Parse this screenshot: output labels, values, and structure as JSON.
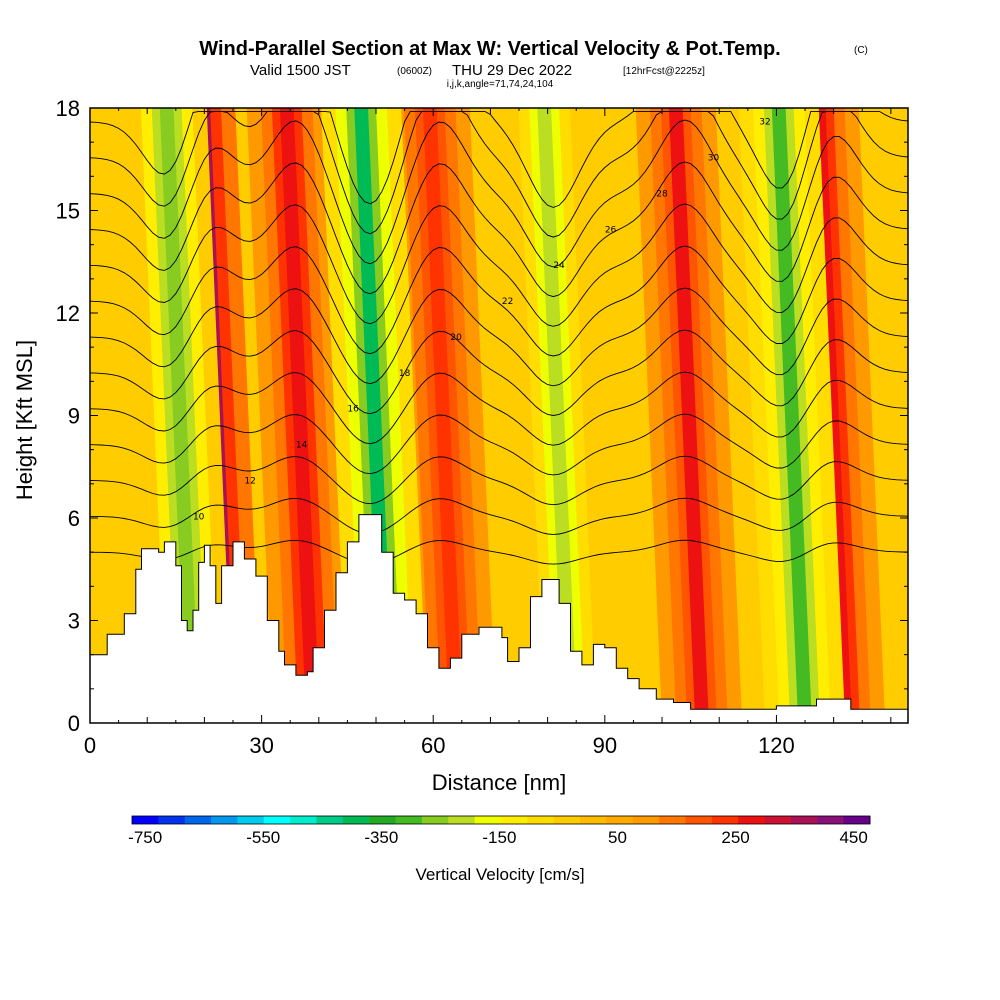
{
  "header": {
    "title": "Wind-Parallel Section at Max W: Vertical Velocity & Pot.Temp.",
    "title_suffix": "(C)",
    "valid_prefix": "Valid 1500 JST",
    "valid_utc": "(0600Z)",
    "valid_date": "THU 29 Dec 2022",
    "forecast": "[12hrFcst@2225z]",
    "indices": "i,j,k,angle=71,74,24,104"
  },
  "chart_data": {
    "type": "heatmap",
    "xlabel": "Distance [nm]",
    "ylabel": "Height [Kft MSL]",
    "xlim": [
      0,
      143
    ],
    "ylim": [
      0,
      18
    ],
    "x_ticks": [
      0,
      30,
      60,
      90,
      120
    ],
    "y_ticks": [
      0,
      3,
      6,
      9,
      12,
      15,
      18
    ],
    "colorbar": {
      "label": "Vertical Velocity [cm/s]",
      "ticks": [
        -750,
        -550,
        -350,
        -150,
        50,
        250,
        450
      ],
      "min": -750,
      "max": 500,
      "colors": [
        "#0000ff",
        "#0033ee",
        "#0066ee",
        "#0099ee",
        "#00ccee",
        "#00ffff",
        "#00eecc",
        "#00cc88",
        "#00bb55",
        "#22aa22",
        "#44bb22",
        "#88cc22",
        "#bbdd22",
        "#eeff00",
        "#ffee00",
        "#ffdd00",
        "#ffcc00",
        "#ffbb00",
        "#ffaa00",
        "#ff9900",
        "#ff7700",
        "#ff5500",
        "#ff3300",
        "#ee1111",
        "#cc1133",
        "#aa1155",
        "#881177",
        "#660088"
      ]
    },
    "updraft_bands": [
      {
        "name": "strong updraft",
        "x_center": 20,
        "w": 500
      },
      {
        "name": "updraft",
        "x_center": 36,
        "w": 300
      },
      {
        "name": "updraft",
        "x_center": 61,
        "w": 260
      },
      {
        "name": "updraft",
        "x_center": 104,
        "w": 280
      },
      {
        "name": "updraft",
        "x_center": 129,
        "w": 300
      }
    ],
    "downdraft_bands": [
      {
        "name": "downdraft",
        "x_center": 15,
        "w": -250
      },
      {
        "name": "downdraft",
        "x_center": 49,
        "w": -350
      },
      {
        "name": "downdraft",
        "x_center": 81,
        "w": -200
      },
      {
        "name": "downdraft",
        "x_center": 122,
        "w": -300
      }
    ],
    "theta_contours": [
      8,
      10,
      12,
      14,
      16,
      18,
      20,
      22,
      24,
      26,
      28,
      30,
      32
    ],
    "terrain_kft": [
      [
        0,
        2.0
      ],
      [
        3,
        2.6
      ],
      [
        6,
        3.2
      ],
      [
        8,
        4.5
      ],
      [
        9,
        5.1
      ],
      [
        12,
        5.0
      ],
      [
        13,
        5.3
      ],
      [
        15,
        4.6
      ],
      [
        16,
        3.0
      ],
      [
        17,
        2.7
      ],
      [
        18,
        3.3
      ],
      [
        19,
        4.7
      ],
      [
        20,
        5.2
      ],
      [
        21,
        4.6
      ],
      [
        22,
        3.5
      ],
      [
        23,
        4.6
      ],
      [
        25,
        5.3
      ],
      [
        27,
        4.8
      ],
      [
        29,
        4.3
      ],
      [
        31,
        3.0
      ],
      [
        33,
        2.1
      ],
      [
        34,
        1.7
      ],
      [
        36,
        1.4
      ],
      [
        38,
        1.5
      ],
      [
        39,
        2.2
      ],
      [
        41,
        3.3
      ],
      [
        43,
        4.4
      ],
      [
        45,
        5.3
      ],
      [
        47,
        6.1
      ],
      [
        50,
        6.1
      ],
      [
        51,
        5.0
      ],
      [
        53,
        3.8
      ],
      [
        55,
        3.6
      ],
      [
        57,
        3.2
      ],
      [
        59,
        2.2
      ],
      [
        61,
        1.6
      ],
      [
        63,
        1.9
      ],
      [
        65,
        2.6
      ],
      [
        68,
        2.8
      ],
      [
        70,
        2.8
      ],
      [
        72,
        2.5
      ],
      [
        73,
        1.8
      ],
      [
        75,
        2.2
      ],
      [
        77,
        3.7
      ],
      [
        79,
        4.2
      ],
      [
        81,
        4.2
      ],
      [
        82,
        3.5
      ],
      [
        84,
        2.1
      ],
      [
        86,
        1.7
      ],
      [
        88,
        2.3
      ],
      [
        90,
        2.2
      ],
      [
        92,
        1.6
      ],
      [
        94,
        1.3
      ],
      [
        96,
        1.0
      ],
      [
        99,
        0.7
      ],
      [
        102,
        0.6
      ],
      [
        105,
        0.4
      ],
      [
        108,
        0.4
      ],
      [
        113,
        0.4
      ],
      [
        120,
        0.5
      ],
      [
        123,
        0.5
      ],
      [
        127,
        0.7
      ],
      [
        131,
        0.7
      ],
      [
        133,
        0.4
      ],
      [
        136,
        0.4
      ],
      [
        143,
        0.4
      ]
    ]
  }
}
